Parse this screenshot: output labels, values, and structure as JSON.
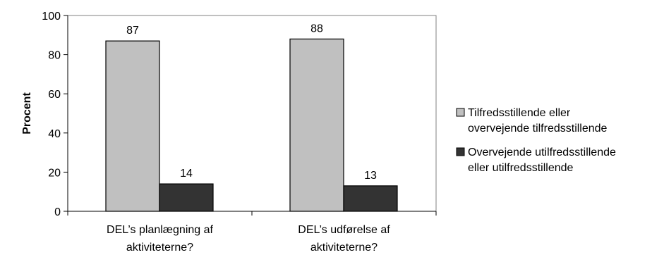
{
  "chart_data": {
    "type": "bar",
    "title": "",
    "xlabel": "",
    "ylabel": "Procent",
    "ylim": [
      0,
      100
    ],
    "yticks": [
      0,
      20,
      40,
      60,
      80,
      100
    ],
    "grid": false,
    "legend_position": "right",
    "categories": [
      [
        "DEL’s planlægning af",
        "aktiviteterne?"
      ],
      [
        "DEL’s udførelse af",
        "aktiviteterne?"
      ]
    ],
    "series": [
      {
        "name": [
          "Tilfredsstillende eller",
          "overvejende tilfredsstillende"
        ],
        "color": "#c0c0c0",
        "values": [
          87,
          88
        ]
      },
      {
        "name": [
          "Overvejende utilfredsstillende",
          "eller utilfredsstillende"
        ],
        "color": "#333333",
        "values": [
          14,
          13
        ]
      }
    ]
  }
}
